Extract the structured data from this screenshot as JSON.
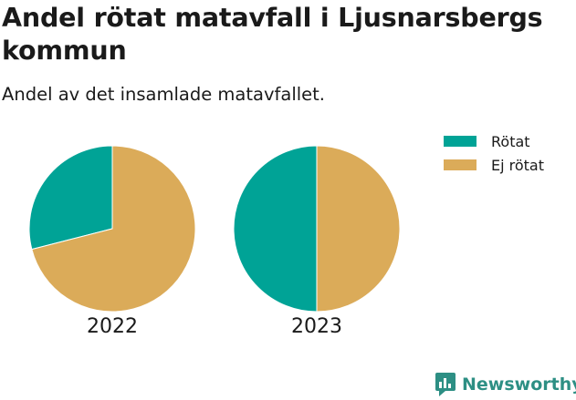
{
  "header": {
    "title": "Andel rötat matavfall i Ljusnarsbergs kommun",
    "subtitle": "Andel av det insamlade matavfallet."
  },
  "brand": {
    "name": "Newsworthy",
    "icon": "bar-chart-logo-icon",
    "color": "#2d8f84"
  },
  "colors": {
    "rotat": "#00a396",
    "ej_rotat": "#dbab59"
  },
  "chart_data": {
    "type": "pie",
    "title": "Andel rötat matavfall i Ljusnarsbergs kommun",
    "subtitle": "Andel av det insamlade matavfallet.",
    "legend": {
      "position": "top-right",
      "entries": [
        "Rötat",
        "Ej rötat"
      ]
    },
    "series": [
      {
        "name": "Rötat",
        "color": "#00a396"
      },
      {
        "name": "Ej rötat",
        "color": "#dbab59"
      }
    ],
    "pies": [
      {
        "label": "2022",
        "values": {
          "Rötat": 29,
          "Ej rötat": 71
        }
      },
      {
        "label": "2023",
        "values": {
          "Rötat": 50,
          "Ej rötat": 50
        }
      }
    ]
  }
}
